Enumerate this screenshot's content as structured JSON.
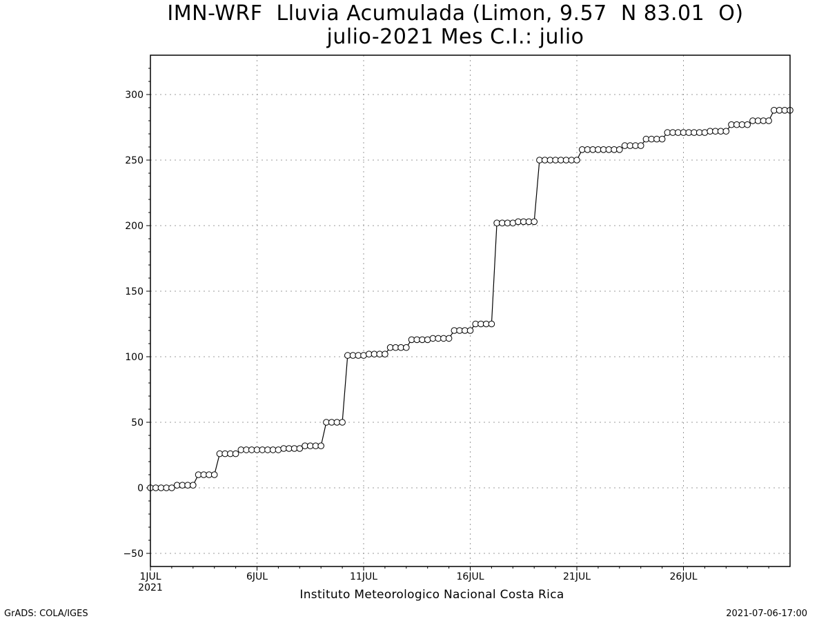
{
  "header": {
    "title_line1": "IMN-WRF  Lluvia Acumulada (Limon, 9.57  N 83.01  O)",
    "title_line2": "julio-2021 Mes C.I.: julio"
  },
  "footer": {
    "left": "GrADS: COLA/IGES",
    "right": "2021-07-06-17:00",
    "credit": "Instituto Meteorologico Nacional Costa Rica"
  },
  "chart_data": {
    "type": "line",
    "title": "IMN-WRF  Lluvia Acumulada (Limon, 9.57  N 83.01  O)",
    "subtitle": "julio-2021 Mes C.I.: julio",
    "xlabel": "",
    "ylabel": "",
    "x_unit": "day of July 2021 (6-hourly steps)",
    "xlim": [
      1,
      31
    ],
    "ylim": [
      -60,
      330
    ],
    "yticks": [
      -50,
      0,
      50,
      100,
      150,
      200,
      250,
      300
    ],
    "xticks": [
      {
        "x": 1,
        "label": "1JUL",
        "sublabel": "2021"
      },
      {
        "x": 6,
        "label": "6JUL"
      },
      {
        "x": 11,
        "label": "11JUL"
      },
      {
        "x": 16,
        "label": "16JUL"
      },
      {
        "x": 21,
        "label": "21JUL"
      },
      {
        "x": 26,
        "label": "26JUL"
      }
    ],
    "grid": true,
    "marker": "open-circle",
    "series": [
      {
        "x": [
          1.0,
          1.25,
          1.5,
          1.75,
          2.0,
          2.25,
          2.5,
          2.75,
          3.0,
          3.25,
          3.5,
          3.75,
          4.0,
          4.25,
          4.5,
          4.75,
          5.0,
          5.25,
          5.5,
          5.75,
          6.0,
          6.25,
          6.5,
          6.75,
          7.0,
          7.25,
          7.5,
          7.75,
          8.0,
          8.25,
          8.5,
          8.75,
          9.0,
          9.25,
          9.5,
          9.75,
          10.0,
          10.25,
          10.5,
          10.75,
          11.0,
          11.25,
          11.5,
          11.75,
          12.0,
          12.25,
          12.5,
          12.75,
          13.0,
          13.25,
          13.5,
          13.75,
          14.0,
          14.25,
          14.5,
          14.75,
          15.0,
          15.25,
          15.5,
          15.75,
          16.0,
          16.25,
          16.5,
          16.75,
          17.0,
          17.25,
          17.5,
          17.75,
          18.0,
          18.25,
          18.5,
          18.75,
          19.0,
          19.25,
          19.5,
          19.75,
          20.0,
          20.25,
          20.5,
          20.75,
          21.0,
          21.25,
          21.5,
          21.75,
          22.0,
          22.25,
          22.5,
          22.75,
          23.0,
          23.25,
          23.5,
          23.75,
          24.0,
          24.25,
          24.5,
          24.75,
          25.0,
          25.25,
          25.5,
          25.75,
          26.0,
          26.25,
          26.5,
          26.75,
          27.0,
          27.25,
          27.5,
          27.75,
          28.0,
          28.25,
          28.5,
          28.75,
          29.0,
          29.25,
          29.5,
          29.75,
          30.0,
          30.25,
          30.5,
          30.75,
          31.0
        ],
        "y": [
          0,
          0,
          0,
          0,
          0,
          2,
          2,
          2,
          2,
          10,
          10,
          10,
          10,
          26,
          26,
          26,
          26,
          29,
          29,
          29,
          29,
          29,
          29,
          29,
          29,
          30,
          30,
          30,
          30,
          32,
          32,
          32,
          32,
          50,
          50,
          50,
          50,
          101,
          101,
          101,
          101,
          102,
          102,
          102,
          102,
          107,
          107,
          107,
          107,
          113,
          113,
          113,
          113,
          114,
          114,
          114,
          114,
          120,
          120,
          120,
          120,
          125,
          125,
          125,
          125,
          202,
          202,
          202,
          202,
          203,
          203,
          203,
          203,
          250,
          250,
          250,
          250,
          250,
          250,
          250,
          250,
          258,
          258,
          258,
          258,
          258,
          258,
          258,
          258,
          261,
          261,
          261,
          261,
          266,
          266,
          266,
          266,
          271,
          271,
          271,
          271,
          271,
          271,
          271,
          271,
          272,
          272,
          272,
          272,
          277,
          277,
          277,
          277,
          280,
          280,
          280,
          280,
          288,
          288,
          288,
          288
        ]
      }
    ]
  }
}
